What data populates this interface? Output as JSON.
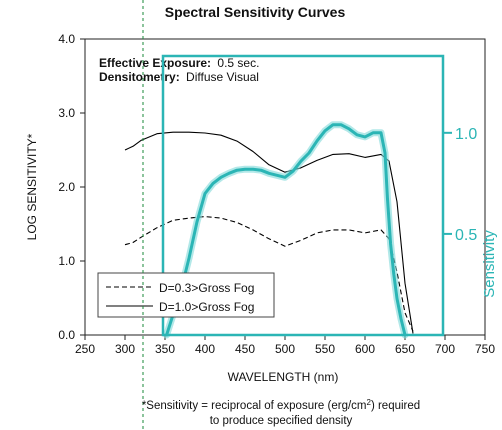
{
  "chart_data": {
    "type": "line",
    "title": "Spectral Sensitivity Curves",
    "annotations": [
      {
        "label": "Effective Exposure:",
        "value": "0.5 sec."
      },
      {
        "label": "Densitometry:",
        "value": "Diffuse Visual"
      }
    ],
    "xlabel": "WAVELENGTH (nm)",
    "ylabel": "LOG SENSITIVITY*",
    "y2label": "Sensitivity",
    "xlim": [
      250,
      750
    ],
    "ylim": [
      0.0,
      4.0
    ],
    "y2lim": [
      0.0,
      1.38
    ],
    "x_ticks": [
      "250",
      "300",
      "350",
      "400",
      "450",
      "500",
      "550",
      "600",
      "650",
      "700",
      "750"
    ],
    "y_ticks": [
      "0.0",
      "1.0",
      "2.0",
      "3.0",
      "4.0"
    ],
    "y2_ticks": [
      "0.5",
      "1.0"
    ],
    "grid": false,
    "legend_position": "bottom-left",
    "series": [
      {
        "name": "D=0.3>Gross Fog",
        "style": "dashed",
        "color": "#000000",
        "axis": "left",
        "x": [
          300,
          310,
          320,
          340,
          360,
          380,
          400,
          420,
          440,
          460,
          480,
          500,
          520,
          540,
          560,
          580,
          600,
          620,
          630,
          640,
          650,
          660
        ],
        "y": [
          1.22,
          1.25,
          1.32,
          1.45,
          1.55,
          1.58,
          1.6,
          1.58,
          1.52,
          1.42,
          1.3,
          1.2,
          1.28,
          1.38,
          1.42,
          1.42,
          1.38,
          1.42,
          1.3,
          0.85,
          0.3,
          0.05
        ]
      },
      {
        "name": "D=1.0>Gross Fog",
        "style": "solid",
        "color": "#000000",
        "axis": "left",
        "x": [
          300,
          310,
          320,
          340,
          360,
          380,
          400,
          420,
          440,
          460,
          480,
          500,
          520,
          540,
          560,
          580,
          600,
          620,
          630,
          640,
          650,
          660
        ],
        "y": [
          2.5,
          2.55,
          2.63,
          2.72,
          2.74,
          2.74,
          2.73,
          2.7,
          2.62,
          2.48,
          2.3,
          2.2,
          2.26,
          2.36,
          2.44,
          2.45,
          2.4,
          2.44,
          2.35,
          1.8,
          0.7,
          0.02
        ]
      },
      {
        "name": "",
        "style": "solid-thick",
        "color": "#2bb5b5",
        "axis": "right",
        "x": [
          352,
          360,
          370,
          380,
          390,
          400,
          410,
          420,
          430,
          440,
          450,
          460,
          470,
          480,
          490,
          500,
          510,
          520,
          530,
          540,
          550,
          560,
          570,
          580,
          590,
          600,
          610,
          620,
          625,
          628,
          632,
          636,
          640,
          645,
          650
        ],
        "y": [
          0.0,
          0.1,
          0.22,
          0.38,
          0.56,
          0.7,
          0.75,
          0.78,
          0.8,
          0.815,
          0.82,
          0.82,
          0.815,
          0.8,
          0.79,
          0.78,
          0.81,
          0.86,
          0.9,
          0.96,
          1.01,
          1.04,
          1.04,
          1.02,
          0.99,
          0.98,
          1.0,
          1.0,
          0.9,
          0.68,
          0.45,
          0.3,
          0.18,
          0.08,
          0.0
        ]
      }
    ]
  }
}
